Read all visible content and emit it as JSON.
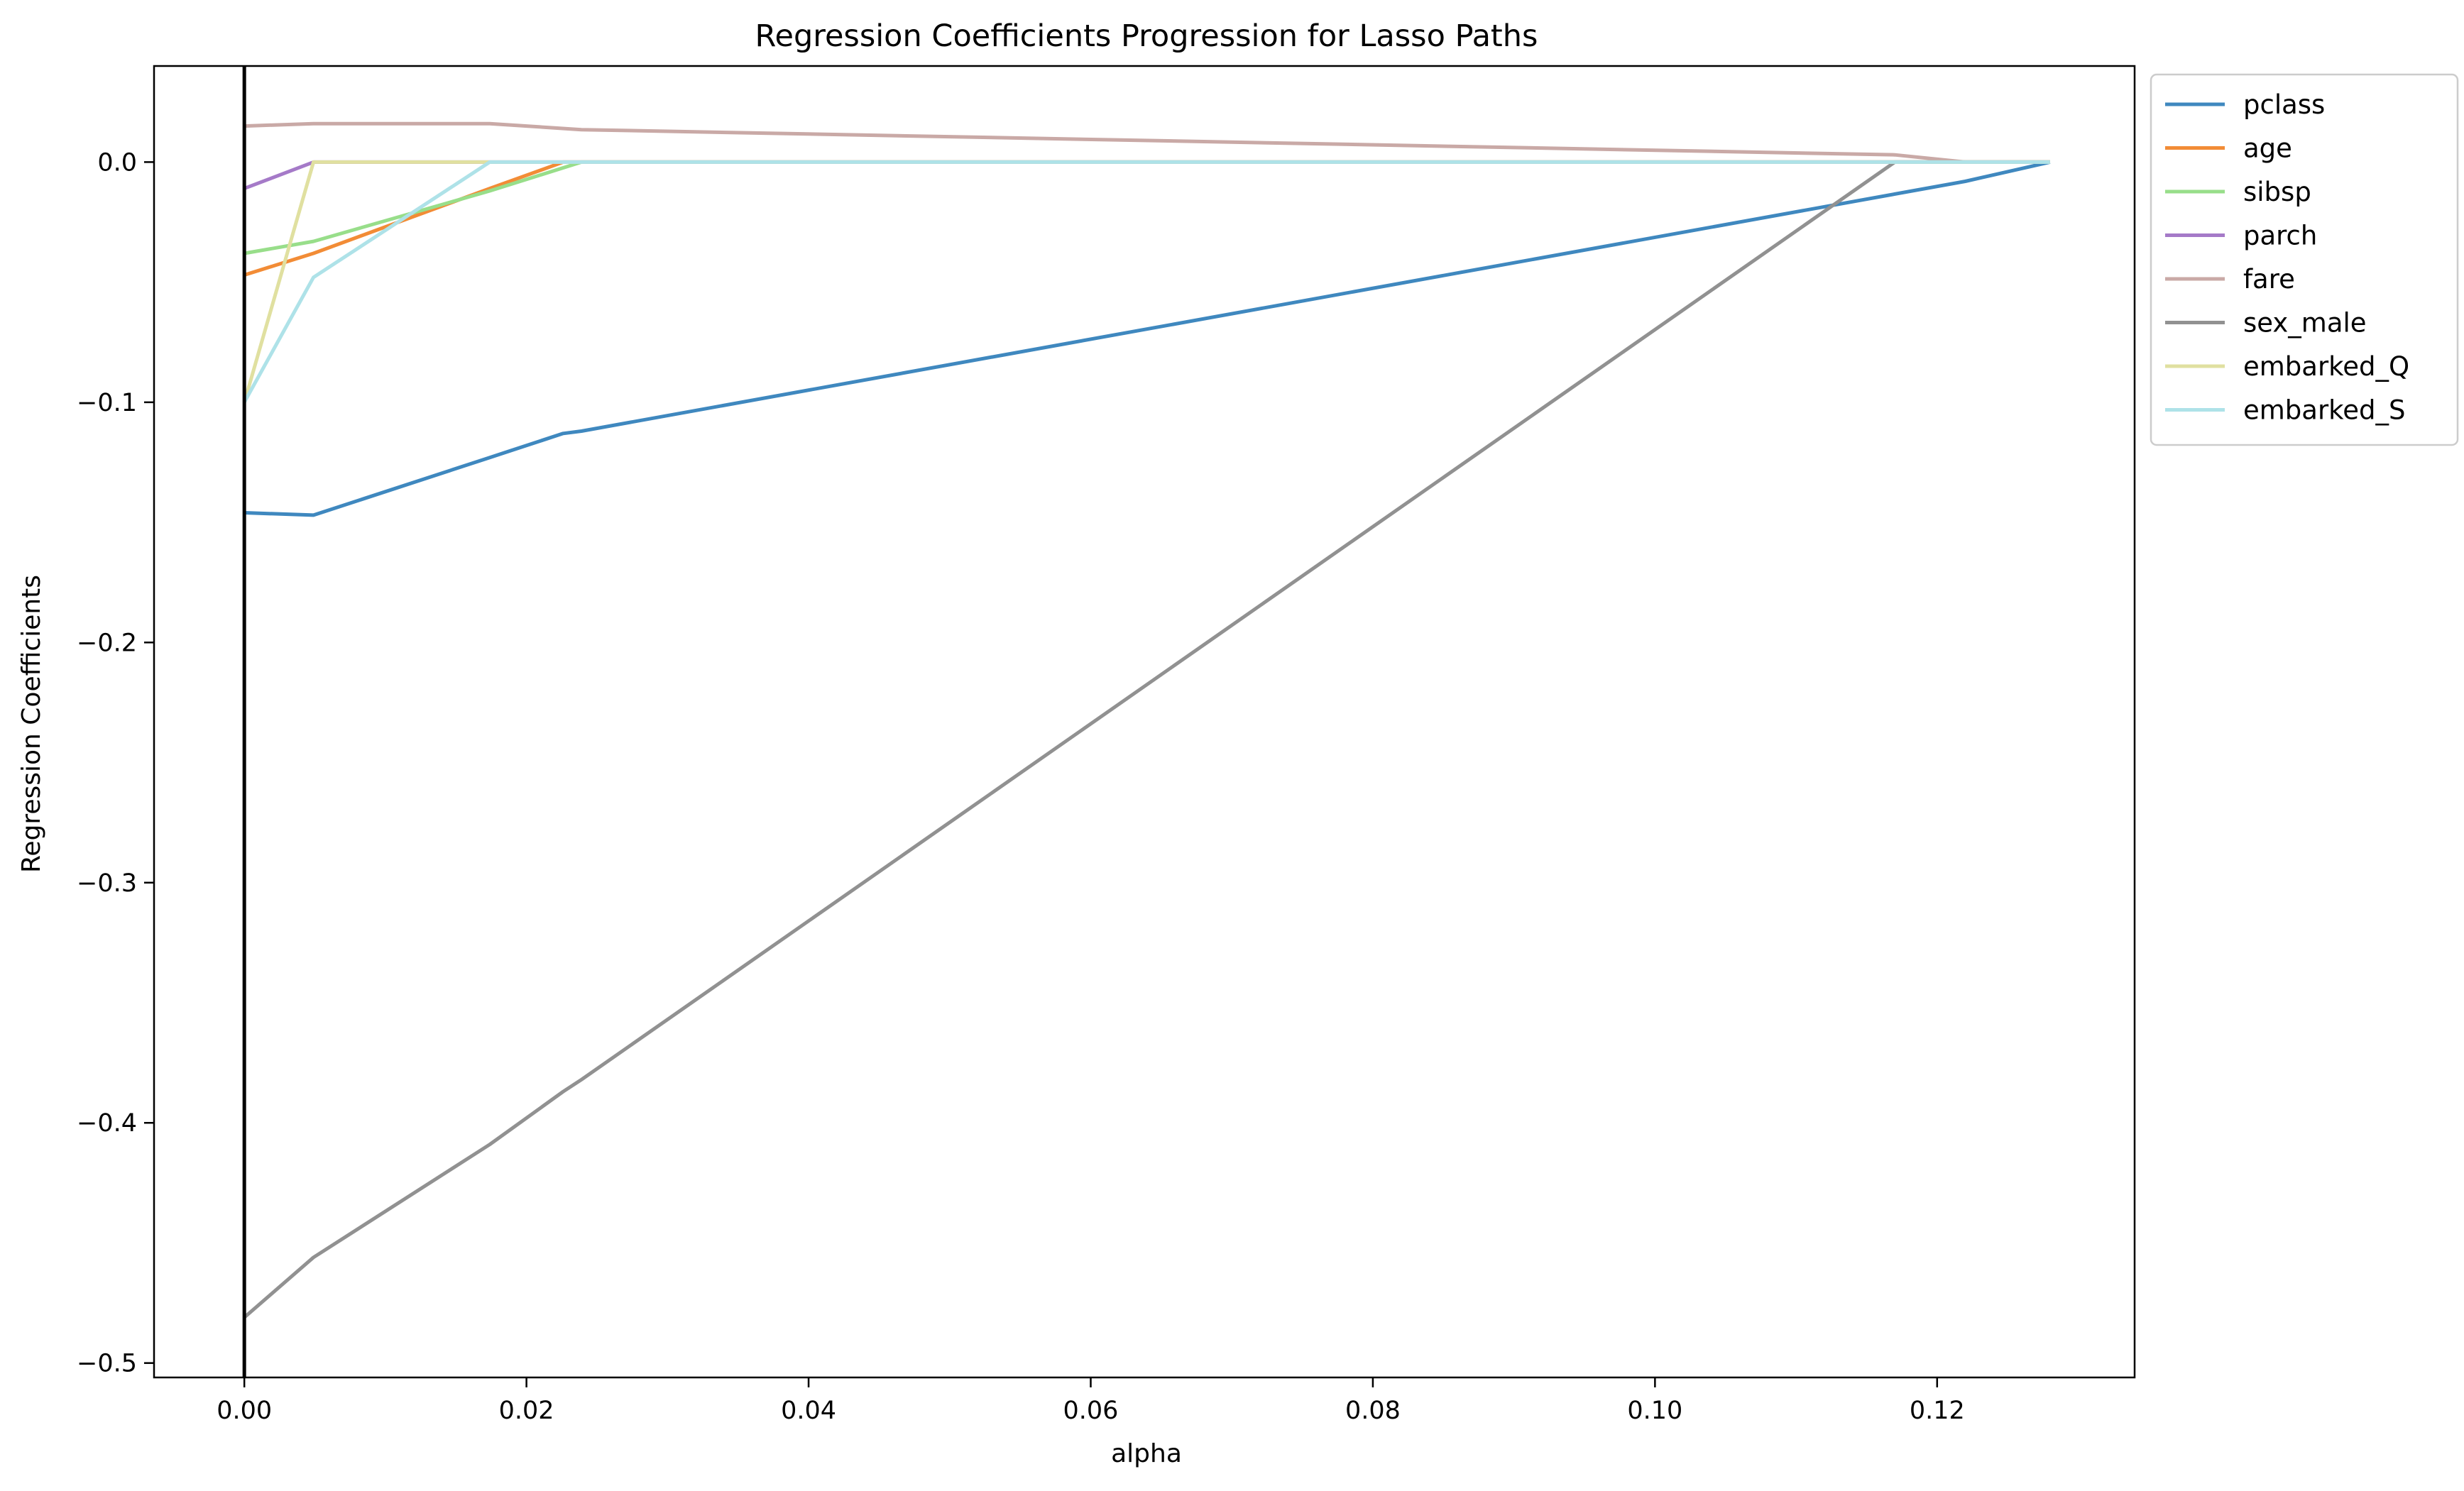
{
  "chart_data": {
    "type": "line",
    "title": "Regression Coefficients Progression for Lasso Paths",
    "xlabel": "alpha",
    "ylabel": "Regression Coefficients",
    "xlim": [
      -0.0064,
      0.134
    ],
    "ylim": [
      -0.506,
      0.04
    ],
    "xticks": [
      0.0,
      0.02,
      0.04,
      0.06,
      0.08,
      0.1,
      0.12
    ],
    "xtick_labels": [
      "0.00",
      "0.02",
      "0.04",
      "0.06",
      "0.08",
      "0.10",
      "0.12"
    ],
    "yticks": [
      0.0,
      -0.1,
      -0.2,
      -0.3,
      -0.4,
      -0.5
    ],
    "ytick_labels": [
      "0.0",
      "−0.1",
      "−0.2",
      "−0.3",
      "−0.4",
      "−0.5"
    ],
    "vline_x": 0.0,
    "grid": false,
    "legend_position": "outside-right-top",
    "series": [
      {
        "name": "pclass",
        "color": "#3f88bf",
        "points": [
          [
            0.0,
            -0.146
          ],
          [
            0.0049,
            -0.147
          ],
          [
            0.0174,
            -0.123
          ],
          [
            0.0226,
            -0.113
          ],
          [
            0.0239,
            -0.112
          ],
          [
            0.122,
            -0.008
          ],
          [
            0.128,
            0.0
          ]
        ]
      },
      {
        "name": "age",
        "color": "#f28c36",
        "points": [
          [
            0.0,
            -0.047
          ],
          [
            0.0049,
            -0.038
          ],
          [
            0.0174,
            -0.011
          ],
          [
            0.0226,
            0.0
          ],
          [
            0.128,
            0.0
          ]
        ]
      },
      {
        "name": "sibsp",
        "color": "#98de8a",
        "points": [
          [
            0.0,
            -0.038
          ],
          [
            0.0049,
            -0.033
          ],
          [
            0.0174,
            -0.012
          ],
          [
            0.0239,
            0.0
          ],
          [
            0.128,
            0.0
          ]
        ]
      },
      {
        "name": "parch",
        "color": "#a57ac8",
        "points": [
          [
            0.0,
            -0.011
          ],
          [
            0.0049,
            0.0
          ],
          [
            0.128,
            0.0
          ]
        ]
      },
      {
        "name": "fare",
        "color": "#c9a9a6",
        "points": [
          [
            0.0,
            0.015
          ],
          [
            0.0049,
            0.016
          ],
          [
            0.0174,
            0.016
          ],
          [
            0.0239,
            0.0135
          ],
          [
            0.117,
            0.003
          ],
          [
            0.122,
            0.0
          ],
          [
            0.128,
            0.0
          ]
        ]
      },
      {
        "name": "sex_male",
        "color": "#919191",
        "points": [
          [
            0.0,
            -0.481
          ],
          [
            0.0049,
            -0.456
          ],
          [
            0.0174,
            -0.409
          ],
          [
            0.0226,
            -0.387
          ],
          [
            0.0239,
            -0.382
          ],
          [
            0.117,
            0.0
          ],
          [
            0.128,
            0.0
          ]
        ]
      },
      {
        "name": "embarked_Q",
        "color": "#e0e0a0",
        "points": [
          [
            0.0,
            -0.1
          ],
          [
            0.0049,
            0.0
          ],
          [
            0.128,
            0.0
          ]
        ]
      },
      {
        "name": "embarked_S",
        "color": "#aee2e8",
        "points": [
          [
            0.0,
            -0.1
          ],
          [
            0.0049,
            -0.048
          ],
          [
            0.0174,
            0.0
          ],
          [
            0.128,
            0.0
          ]
        ]
      }
    ]
  }
}
